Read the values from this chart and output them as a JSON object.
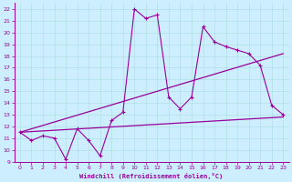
{
  "xlabel": "Windchill (Refroidissement éolien,°C)",
  "background_color": "#cceeff",
  "line_color": "#990099",
  "xlim": [
    -0.5,
    23.5
  ],
  "ylim": [
    9,
    22.5
  ],
  "xticks": [
    0,
    1,
    2,
    3,
    4,
    5,
    6,
    7,
    8,
    9,
    10,
    11,
    12,
    13,
    14,
    15,
    16,
    17,
    18,
    19,
    20,
    21,
    22,
    23
  ],
  "yticks": [
    9,
    10,
    11,
    12,
    13,
    14,
    15,
    16,
    17,
    18,
    19,
    20,
    21,
    22
  ],
  "curve1_x": [
    0,
    1,
    2,
    3,
    4,
    5,
    6,
    7,
    8,
    9,
    10,
    11,
    12,
    13,
    14,
    15,
    16,
    17,
    18,
    19,
    20,
    21,
    22,
    23
  ],
  "curve1_y": [
    11.5,
    10.8,
    11.2,
    11.0,
    9.2,
    11.8,
    10.8,
    9.5,
    12.5,
    13.2,
    22.0,
    21.2,
    21.5,
    14.5,
    13.5,
    14.5,
    20.5,
    19.2,
    18.8,
    18.5,
    18.2,
    17.2,
    13.8,
    13.0
  ],
  "curve2_x": [
    0,
    23
  ],
  "curve2_y": [
    11.5,
    18.2
  ],
  "curve3_x": [
    0,
    23
  ],
  "curve3_y": [
    11.5,
    12.8
  ]
}
